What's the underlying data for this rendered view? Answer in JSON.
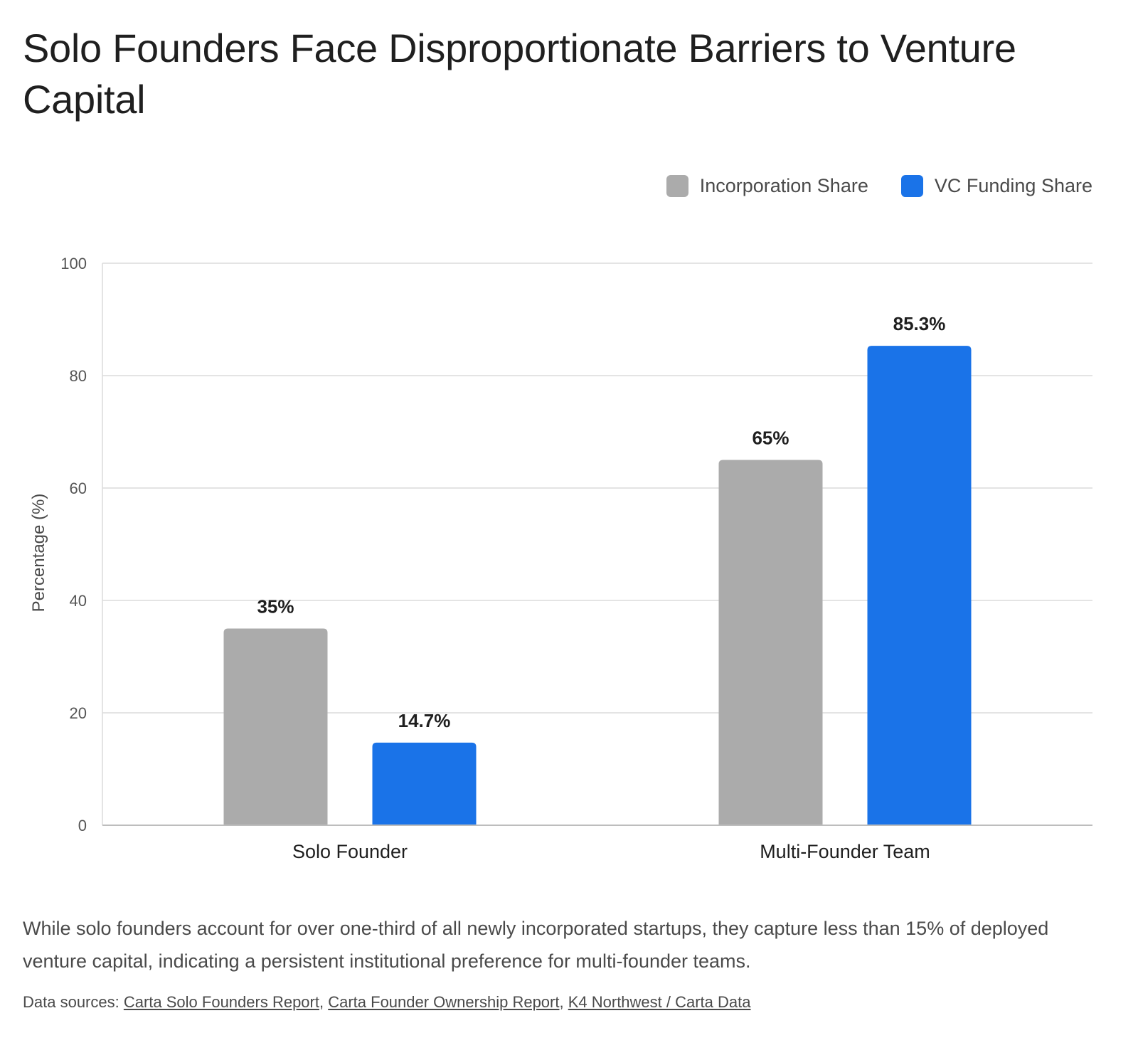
{
  "title": "Solo Founders Face Disproportionate Barriers to Venture Capital",
  "legend": [
    {
      "name": "Incorporation Share",
      "color": "#ababab"
    },
    {
      "name": "VC Funding Share",
      "color": "#1a73e8"
    }
  ],
  "chart_data": {
    "type": "bar",
    "categories": [
      "Solo Founder",
      "Multi-Founder Team"
    ],
    "series": [
      {
        "name": "Incorporation Share",
        "values": [
          35,
          65
        ],
        "labels": [
          "35%",
          "65%"
        ],
        "color": "#ababab"
      },
      {
        "name": "VC Funding Share",
        "values": [
          14.7,
          85.3
        ],
        "labels": [
          "14.7%",
          "85.3%"
        ],
        "color": "#1a73e8"
      }
    ],
    "title": "Solo Founders Face Disproportionate Barriers to Venture Capital",
    "xlabel": "",
    "ylabel": "Percentage (%)",
    "ylim": [
      0,
      100
    ],
    "yticks": [
      0,
      20,
      40,
      60,
      80,
      100
    ],
    "grid": true,
    "legend_position": "top-right"
  },
  "caption": "While solo founders account for over one-third of all newly incorporated startups, they capture less than 15% of deployed venture capital, indicating a persistent institutional preference for multi-founder teams.",
  "sources": {
    "prefix": "Data sources: ",
    "links": [
      "Carta Solo Founders Report",
      "Carta Founder Ownership Report",
      "K4 Northwest / Carta Data"
    ],
    "separator": ", "
  }
}
